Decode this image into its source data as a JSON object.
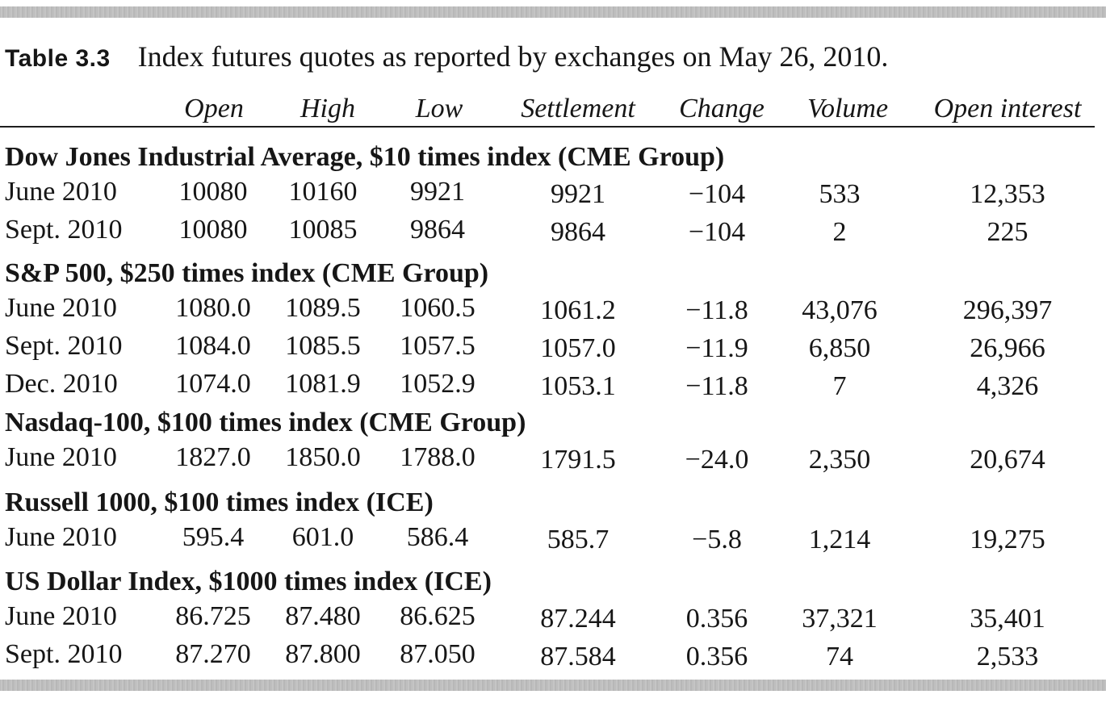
{
  "caption": {
    "number": "Table 3.3",
    "text": "Index futures quotes as reported by exchanges on May 26, 2010."
  },
  "columns": [
    "Open",
    "High",
    "Low",
    "Settlement",
    "Change",
    "Volume",
    "Open interest"
  ],
  "groups": [
    {
      "title": "Dow Jones Industrial Average, $10 times index (CME Group)",
      "rows": [
        [
          "June 2010",
          "10080",
          "10160",
          "9921",
          "9921",
          "−104",
          "533",
          "12,353"
        ],
        [
          "Sept. 2010",
          "10080",
          "10085",
          "9864",
          "9864",
          "−104",
          "2",
          "225"
        ]
      ]
    },
    {
      "title": "S&P 500, $250 times index (CME Group)",
      "rows": [
        [
          "June 2010",
          "1080.0",
          "1089.5",
          "1060.5",
          "1061.2",
          "−11.8",
          "43,076",
          "296,397"
        ],
        [
          "Sept. 2010",
          "1084.0",
          "1085.5",
          "1057.5",
          "1057.0",
          "−11.9",
          "6,850",
          "26,966"
        ],
        [
          "Dec. 2010",
          "1074.0",
          "1081.9",
          "1052.9",
          "1053.1",
          "−11.8",
          "7",
          "4,326"
        ]
      ]
    },
    {
      "title": "Nasdaq-100, $100 times index (CME Group)",
      "rows": [
        [
          "June 2010",
          "1827.0",
          "1850.0",
          "1788.0",
          "1791.5",
          "−24.0",
          "2,350",
          "20,674"
        ]
      ]
    },
    {
      "title": "Russell 1000, $100 times index (ICE)",
      "rows": [
        [
          "June 2010",
          "595.4",
          "601.0",
          "586.4",
          "585.7",
          "−5.8",
          "1,214",
          "19,275"
        ]
      ]
    },
    {
      "title": "US Dollar Index, $1000 times index (ICE)",
      "rows": [
        [
          "June 2010",
          "86.725",
          "87.480",
          "86.625",
          "87.244",
          "0.356",
          "37,321",
          "35,401"
        ],
        [
          "Sept. 2010",
          "87.270",
          "87.800",
          "87.050",
          "87.584",
          "0.356",
          "74",
          "2,533"
        ]
      ]
    }
  ]
}
